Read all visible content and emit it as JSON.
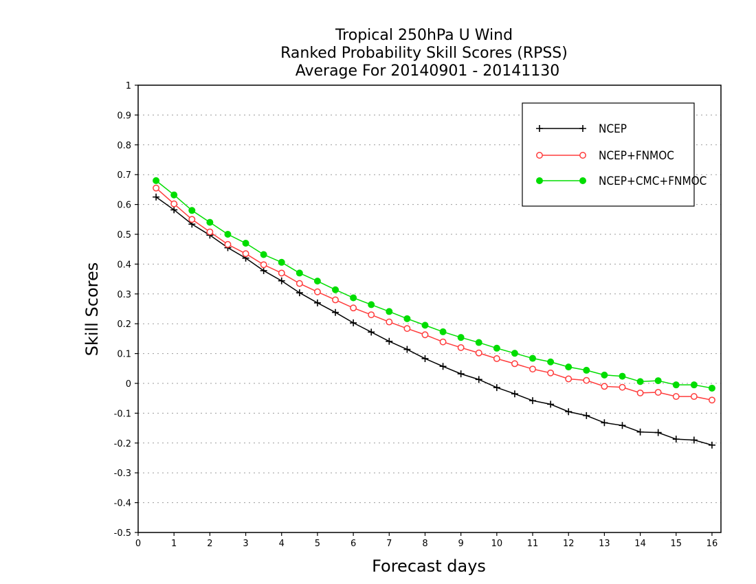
{
  "chart_data": {
    "type": "line",
    "title": [
      "Tropical 250hPa U Wind",
      "Ranked Probability Skill Scores (RPSS)",
      "Average For 20140901 - 20141130"
    ],
    "xlabel": "Forecast days",
    "ylabel": "Skill Scores",
    "xlim": [
      0,
      16.25
    ],
    "ylim": [
      -0.5,
      1
    ],
    "xticks": [
      0,
      1,
      2,
      3,
      4,
      5,
      6,
      7,
      8,
      9,
      10,
      11,
      12,
      13,
      14,
      15,
      16
    ],
    "yticks": [
      -0.5,
      -0.4,
      -0.3,
      -0.2,
      -0.1,
      0,
      0.1,
      0.2,
      0.3,
      0.4,
      0.5,
      0.6,
      0.7,
      0.8,
      0.9,
      1
    ],
    "ytick_labels": [
      "-0.5",
      "-0.4",
      "-0.3",
      "-0.2",
      "-0.1",
      "0",
      "0.1",
      "0.2",
      "0.3",
      "0.4",
      "0.5",
      "0.6",
      "0.7",
      "0.8",
      "0.9",
      "1"
    ],
    "grid": "horizontal dotted",
    "legend_position": "top-right",
    "x": [
      0.5,
      1,
      1.5,
      2,
      2.5,
      3,
      3.5,
      4,
      4.5,
      5,
      5.5,
      6,
      6.5,
      7,
      7.5,
      8,
      8.5,
      9,
      9.5,
      10,
      10.5,
      11,
      11.5,
      12,
      12.5,
      13,
      13.5,
      14,
      14.5,
      15,
      15.5,
      16
    ],
    "series": [
      {
        "name": "NCEP",
        "color": "#000000",
        "marker": "plus",
        "values": [
          0.625,
          0.582,
          0.534,
          0.497,
          0.455,
          0.42,
          0.378,
          0.344,
          0.304,
          0.27,
          0.238,
          0.203,
          0.172,
          0.141,
          0.114,
          0.083,
          0.057,
          0.032,
          0.013,
          -0.014,
          -0.035,
          -0.058,
          -0.07,
          -0.095,
          -0.108,
          -0.132,
          -0.141,
          -0.163,
          -0.165,
          -0.187,
          -0.19,
          -0.207
        ]
      },
      {
        "name": "NCEP+FNMOC",
        "color": "#ff3b3b",
        "marker": "open-circle",
        "values": [
          0.655,
          0.602,
          0.55,
          0.508,
          0.466,
          0.435,
          0.398,
          0.37,
          0.335,
          0.307,
          0.28,
          0.253,
          0.23,
          0.206,
          0.184,
          0.163,
          0.139,
          0.12,
          0.102,
          0.083,
          0.066,
          0.048,
          0.035,
          0.015,
          0.01,
          -0.01,
          -0.013,
          -0.032,
          -0.03,
          -0.044,
          -0.044,
          -0.056
        ]
      },
      {
        "name": "NCEP+CMC+FNMOC",
        "color": "#00dd00",
        "marker": "filled-circle",
        "values": [
          0.68,
          0.632,
          0.58,
          0.54,
          0.5,
          0.47,
          0.432,
          0.406,
          0.37,
          0.343,
          0.314,
          0.287,
          0.264,
          0.241,
          0.217,
          0.195,
          0.173,
          0.154,
          0.137,
          0.118,
          0.101,
          0.084,
          0.072,
          0.055,
          0.044,
          0.028,
          0.024,
          0.006,
          0.009,
          -0.005,
          -0.005,
          -0.016
        ]
      }
    ]
  }
}
